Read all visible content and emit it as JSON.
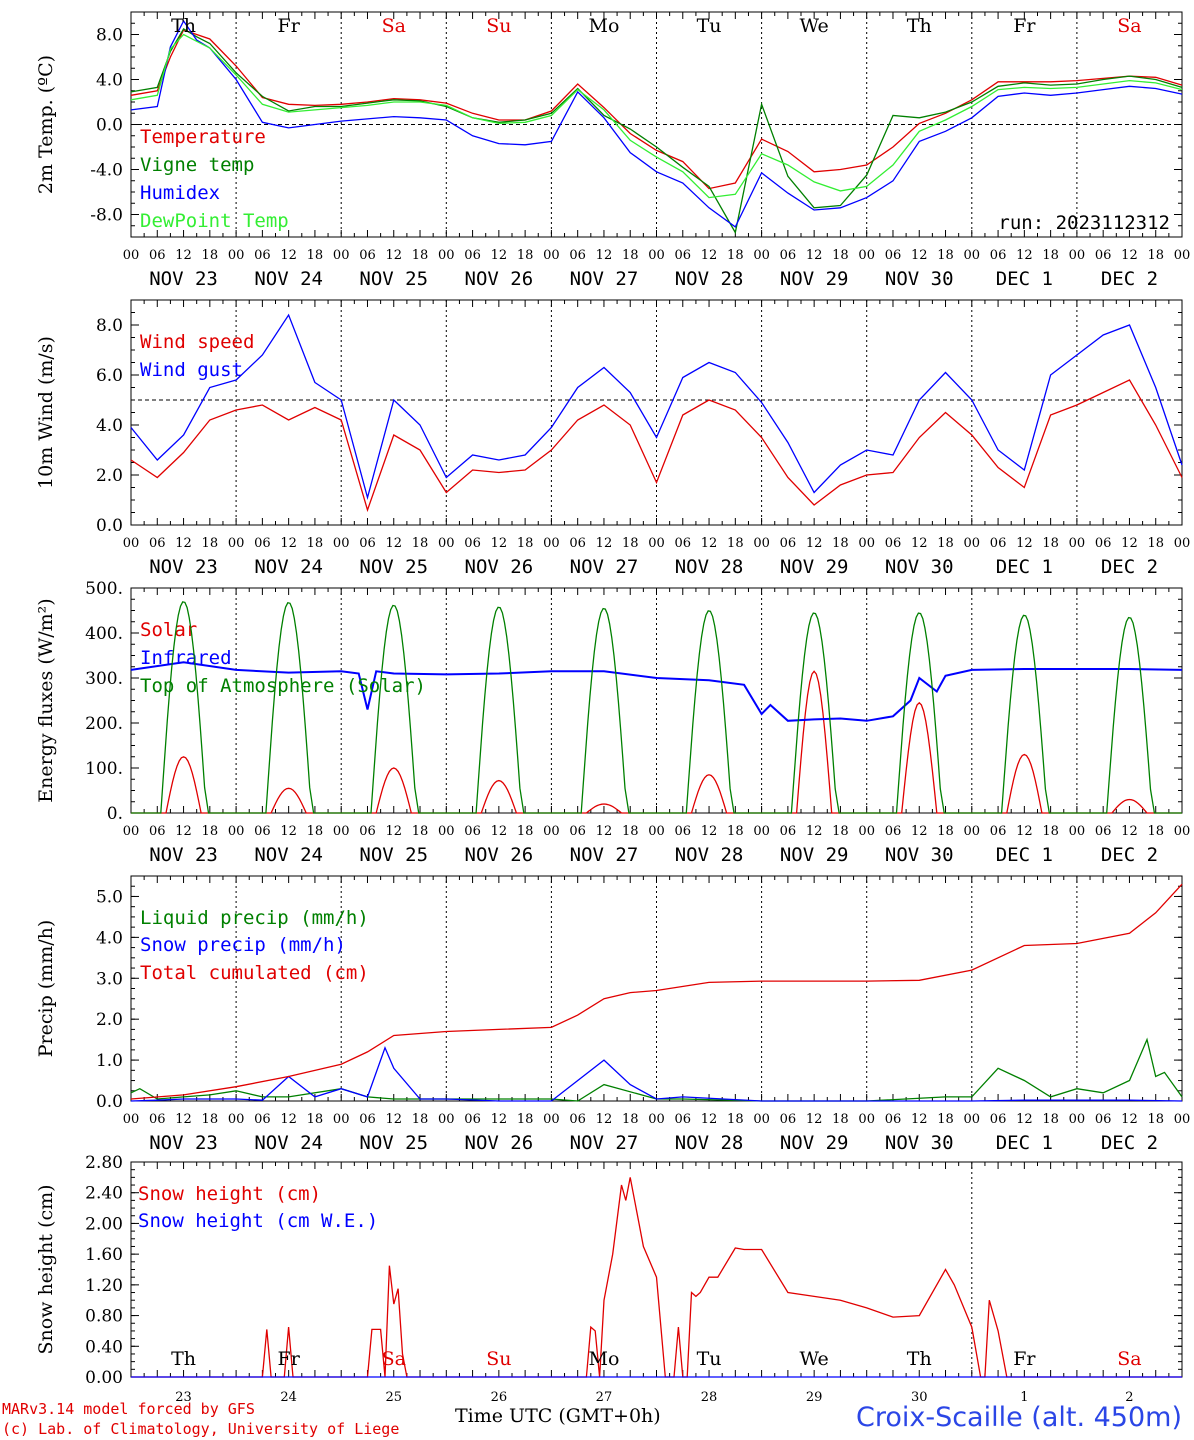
{
  "header": {
    "run": "run: 2023112312"
  },
  "footer": {
    "model": "MARv3.14 model forced by GFS",
    "copyright": "(c) Lab. of Climatology, University of Liege",
    "xtitle": "Time UTC (GMT+0h)",
    "station": "Croix-Scaille (alt. 450m)"
  },
  "time_axis": {
    "hour_ticks": [
      "00",
      "06",
      "12",
      "18"
    ],
    "dates": [
      "NOV 23",
      "NOV 24",
      "NOV 25",
      "NOV 26",
      "NOV 27",
      "NOV 28",
      "NOV 29",
      "NOV 30",
      "DEC  1",
      "DEC  2"
    ],
    "days": [
      "Th",
      "Fr",
      "Sa",
      "Su",
      "Mo",
      "Tu",
      "We",
      "Th",
      "Fr",
      "Sa"
    ],
    "weekend_color": "#e00000",
    "day_numbers": [
      "23",
      "24",
      "25",
      "26",
      "27",
      "28",
      "29",
      "30",
      "1",
      "2"
    ]
  },
  "chart_data": [
    {
      "type": "line",
      "ylabel": "2m Temp. (ºC)",
      "ylim": [
        -10,
        10
      ],
      "yticks": [
        -8,
        -4,
        0,
        4,
        8
      ],
      "ytick_labels": [
        "-8.0",
        "-4.0",
        "0.0",
        "4.0",
        "8.0"
      ],
      "hline": 0,
      "x_hours": [
        0,
        6,
        9,
        12,
        15,
        18,
        24,
        30,
        36,
        42,
        48,
        54,
        60,
        66,
        72,
        78,
        84,
        90,
        96,
        102,
        108,
        114,
        120,
        126,
        132,
        138,
        144,
        150,
        156,
        162,
        168,
        174,
        180,
        186,
        192,
        198,
        204,
        210,
        216,
        222,
        228,
        234,
        240
      ],
      "series": [
        {
          "name": "Temperature",
          "color": "#e00000",
          "values": [
            2.6,
            3.0,
            6.0,
            8.4,
            8.0,
            7.6,
            5.2,
            2.4,
            1.8,
            1.7,
            1.8,
            2.0,
            2.3,
            2.2,
            1.9,
            1.0,
            0.4,
            0.4,
            1.2,
            3.6,
            1.5,
            -0.8,
            -2.3,
            -3.3,
            -5.7,
            -5.2,
            -1.3,
            -2.4,
            -4.2,
            -4.0,
            -3.6,
            -2.0,
            0.1,
            1.0,
            2.2,
            3.8,
            3.8,
            3.8,
            3.9,
            4.1,
            4.3,
            4.2,
            3.5
          ]
        },
        {
          "name": "Vigne temp",
          "color": "#008000",
          "values": [
            2.9,
            3.3,
            6.5,
            8.5,
            7.8,
            7.2,
            4.6,
            2.5,
            1.2,
            1.6,
            1.6,
            1.9,
            2.2,
            2.1,
            1.6,
            0.6,
            0.2,
            0.4,
            1.0,
            3.2,
            0.8,
            -0.4,
            -2.0,
            -3.8,
            -5.5,
            -9.6,
            1.8,
            -4.6,
            -7.4,
            -7.2,
            -4.5,
            0.8,
            0.6,
            1.1,
            2.0,
            3.4,
            3.7,
            3.5,
            3.6,
            4.0,
            4.3,
            4.0,
            3.3
          ]
        },
        {
          "name": "Humidex",
          "color": "#0000ff",
          "values": [
            1.3,
            1.6,
            6.9,
            9.2,
            7.5,
            6.8,
            4.0,
            0.2,
            -0.3,
            0.0,
            0.3,
            0.5,
            0.7,
            0.6,
            0.4,
            -1.0,
            -1.7,
            -1.8,
            -1.5,
            2.9,
            0.6,
            -2.5,
            -4.2,
            -5.2,
            -7.4,
            -9.1,
            -4.3,
            -6.1,
            -7.6,
            -7.4,
            -6.5,
            -5.0,
            -1.5,
            -0.6,
            0.6,
            2.5,
            2.8,
            2.6,
            2.8,
            3.1,
            3.4,
            3.2,
            2.7
          ]
        },
        {
          "name": "DewPoint Temp",
          "color": "#33ee33",
          "values": [
            2.2,
            2.6,
            6.7,
            8.0,
            7.4,
            6.8,
            4.4,
            1.8,
            1.1,
            1.3,
            1.5,
            1.7,
            2.0,
            2.0,
            1.7,
            0.6,
            0.1,
            0.2,
            0.8,
            3.1,
            1.3,
            -1.4,
            -2.9,
            -4.2,
            -6.5,
            -6.2,
            -2.6,
            -3.6,
            -5.1,
            -5.9,
            -5.5,
            -3.6,
            -0.6,
            0.4,
            1.6,
            3.1,
            3.3,
            3.2,
            3.3,
            3.6,
            3.9,
            3.7,
            3.1
          ]
        }
      ]
    },
    {
      "type": "line",
      "ylabel": "10m Wind (m/s)",
      "ylim": [
        0,
        9
      ],
      "yticks": [
        0,
        2,
        4,
        6,
        8
      ],
      "ytick_labels": [
        "0.0",
        "2.0",
        "4.0",
        "6.0",
        "8.0"
      ],
      "hline": 5,
      "x_hours": [
        0,
        6,
        12,
        18,
        24,
        30,
        36,
        42,
        48,
        54,
        60,
        66,
        72,
        78,
        84,
        90,
        96,
        102,
        108,
        114,
        120,
        126,
        132,
        138,
        144,
        150,
        156,
        162,
        168,
        174,
        180,
        186,
        192,
        198,
        204,
        210,
        216,
        222,
        228,
        234,
        240
      ],
      "series": [
        {
          "name": "Wind speed",
          "color": "#e00000",
          "values": [
            2.6,
            1.9,
            2.9,
            4.2,
            4.6,
            4.8,
            4.2,
            4.7,
            4.2,
            0.6,
            3.6,
            3.0,
            1.3,
            2.2,
            2.1,
            2.2,
            3.0,
            4.2,
            4.8,
            4.0,
            1.7,
            4.4,
            5.0,
            4.6,
            3.5,
            1.9,
            0.8,
            1.6,
            2.0,
            2.1,
            3.5,
            4.5,
            3.6,
            2.3,
            1.5,
            4.4,
            4.8,
            5.3,
            5.8,
            4.0,
            1.9
          ]
        },
        {
          "name": "Wind gust",
          "color": "#0000ff",
          "values": [
            3.9,
            2.6,
            3.6,
            5.5,
            5.8,
            6.8,
            8.4,
            5.7,
            5.0,
            1.1,
            5.0,
            4.0,
            1.9,
            2.8,
            2.6,
            2.8,
            3.9,
            5.5,
            6.3,
            5.3,
            3.5,
            5.9,
            6.5,
            6.1,
            4.9,
            3.3,
            1.3,
            2.4,
            3.0,
            2.8,
            5.0,
            6.1,
            5.0,
            3.0,
            2.2,
            6.0,
            6.8,
            7.6,
            8.0,
            5.5,
            2.4
          ]
        }
      ]
    },
    {
      "type": "line",
      "ylabel": "Energy fluxes (W/m²)",
      "ylim": [
        0,
        500
      ],
      "yticks": [
        0,
        100,
        200,
        300,
        400,
        500
      ],
      "ytick_labels": [
        "0.",
        "100.",
        "200.",
        "300.",
        "400.",
        "500."
      ],
      "series": [
        {
          "name": "Solar",
          "color": "#e00000",
          "daily_peaks": [
            125,
            55,
            100,
            72,
            20,
            85,
            315,
            245,
            130,
            30
          ]
        },
        {
          "name": "Infrared",
          "color": "#0000ff",
          "x_hours": [
            0,
            12,
            24,
            36,
            48,
            52,
            54,
            56,
            60,
            72,
            84,
            96,
            108,
            120,
            132,
            140,
            144,
            146,
            150,
            156,
            162,
            168,
            174,
            178,
            180,
            184,
            186,
            192,
            204,
            216,
            228,
            240
          ],
          "values": [
            318,
            335,
            318,
            312,
            315,
            310,
            230,
            315,
            310,
            308,
            310,
            315,
            315,
            300,
            295,
            285,
            220,
            240,
            205,
            208,
            210,
            205,
            215,
            250,
            300,
            270,
            305,
            318,
            320,
            320,
            320,
            318
          ]
        },
        {
          "name": "Top of Atmosphere (Solar)",
          "color": "#008000",
          "daily_peaks": [
            470,
            468,
            462,
            458,
            455,
            450,
            445,
            445,
            440,
            435
          ]
        }
      ]
    },
    {
      "type": "line",
      "ylabel": "Precip (mm/h)",
      "ylim": [
        0,
        5.5
      ],
      "yticks": [
        0,
        1,
        2,
        3,
        4,
        5
      ],
      "ytick_labels": [
        "0.0",
        "1.0",
        "2.0",
        "3.0",
        "4.0",
        "5.0"
      ],
      "series": [
        {
          "name": "Liquid precip (mm/h)",
          "color": "#008000",
          "x_hours": [
            0,
            2,
            6,
            12,
            18,
            24,
            30,
            36,
            48,
            54,
            60,
            72,
            84,
            96,
            102,
            108,
            120,
            126,
            144,
            168,
            186,
            192,
            198,
            204,
            210,
            216,
            222,
            228,
            232,
            234,
            236,
            240
          ],
          "values": [
            0.2,
            0.3,
            0.05,
            0.1,
            0.15,
            0.25,
            0.1,
            0.1,
            0.3,
            0.1,
            0.05,
            0.05,
            0.05,
            0.05,
            0.0,
            0.4,
            0.05,
            0.05,
            0.0,
            0.0,
            0.1,
            0.1,
            0.8,
            0.5,
            0.1,
            0.3,
            0.2,
            0.5,
            1.5,
            0.6,
            0.7,
            0.1
          ]
        },
        {
          "name": "Snow precip (mm/h)",
          "color": "#0000ff",
          "x_hours": [
            0,
            6,
            12,
            18,
            24,
            30,
            36,
            42,
            48,
            54,
            58,
            60,
            66,
            72,
            84,
            96,
            108,
            114,
            120,
            126,
            144,
            168,
            192,
            204,
            216,
            228,
            240
          ],
          "values": [
            0.0,
            0.02,
            0.05,
            0.05,
            0.05,
            0.02,
            0.6,
            0.1,
            0.3,
            0.1,
            1.3,
            0.8,
            0.05,
            0.05,
            0.0,
            0.0,
            1.0,
            0.4,
            0.05,
            0.1,
            0.0,
            0.0,
            0.0,
            0.02,
            0.02,
            0.02,
            0.0
          ]
        },
        {
          "name": "Total cumulated (cm)",
          "color": "#e00000",
          "x_hours": [
            0,
            12,
            24,
            36,
            48,
            54,
            60,
            66,
            72,
            84,
            96,
            102,
            108,
            114,
            120,
            132,
            144,
            168,
            180,
            192,
            204,
            216,
            228,
            234,
            240
          ],
          "values": [
            0.05,
            0.15,
            0.35,
            0.6,
            0.9,
            1.2,
            1.6,
            1.65,
            1.7,
            1.75,
            1.8,
            2.1,
            2.5,
            2.65,
            2.7,
            2.9,
            2.93,
            2.93,
            2.95,
            3.2,
            3.8,
            3.85,
            4.1,
            4.6,
            5.3
          ]
        }
      ]
    },
    {
      "type": "line",
      "ylabel": "Snow height (cm)",
      "ylim": [
        0,
        2.8
      ],
      "yticks": [
        0,
        0.4,
        0.8,
        1.2,
        1.6,
        2.0,
        2.4,
        2.8
      ],
      "ytick_labels": [
        "0.00",
        "0.40",
        "0.80",
        "1.20",
        "1.60",
        "2.00",
        "2.40",
        "2.80"
      ],
      "vline_day": 8,
      "series": [
        {
          "name": "Snow height (cm)",
          "color": "#e00000",
          "x_hours": [
            0,
            30,
            31,
            32,
            35,
            36,
            37,
            54,
            55,
            57,
            58,
            59,
            60,
            61,
            62,
            63,
            64,
            65,
            104,
            105,
            106,
            107,
            108,
            110,
            112,
            113,
            114,
            115,
            116,
            117,
            120,
            122,
            124,
            125,
            126,
            127,
            128,
            129,
            130,
            132,
            134,
            138,
            140,
            144,
            150,
            156,
            162,
            168,
            174,
            180,
            186,
            188,
            192,
            194,
            195,
            196,
            197,
            198,
            200,
            201,
            202,
            210,
            240
          ],
          "values": [
            0,
            0,
            0.62,
            0,
            0,
            0.65,
            0,
            0,
            0.62,
            0.62,
            0,
            1.45,
            0.95,
            1.15,
            0.3,
            0,
            0,
            0,
            0,
            0.65,
            0.6,
            0,
            1.0,
            1.6,
            2.5,
            2.3,
            2.6,
            2.3,
            2.0,
            1.7,
            1.3,
            0,
            0,
            0.65,
            0,
            0,
            1.1,
            1.05,
            1.1,
            1.3,
            1.3,
            1.68,
            1.66,
            1.66,
            1.1,
            1.05,
            1.0,
            0.9,
            0.78,
            0.8,
            1.4,
            1.2,
            0.65,
            0,
            0,
            1.0,
            0.8,
            0.6,
            0,
            0,
            0,
            0,
            0
          ]
        },
        {
          "name": "Snow height (cm W.E.)",
          "color": "#0000ff",
          "x_hours": [
            0,
            240
          ],
          "values": [
            0,
            0
          ]
        }
      ]
    }
  ]
}
